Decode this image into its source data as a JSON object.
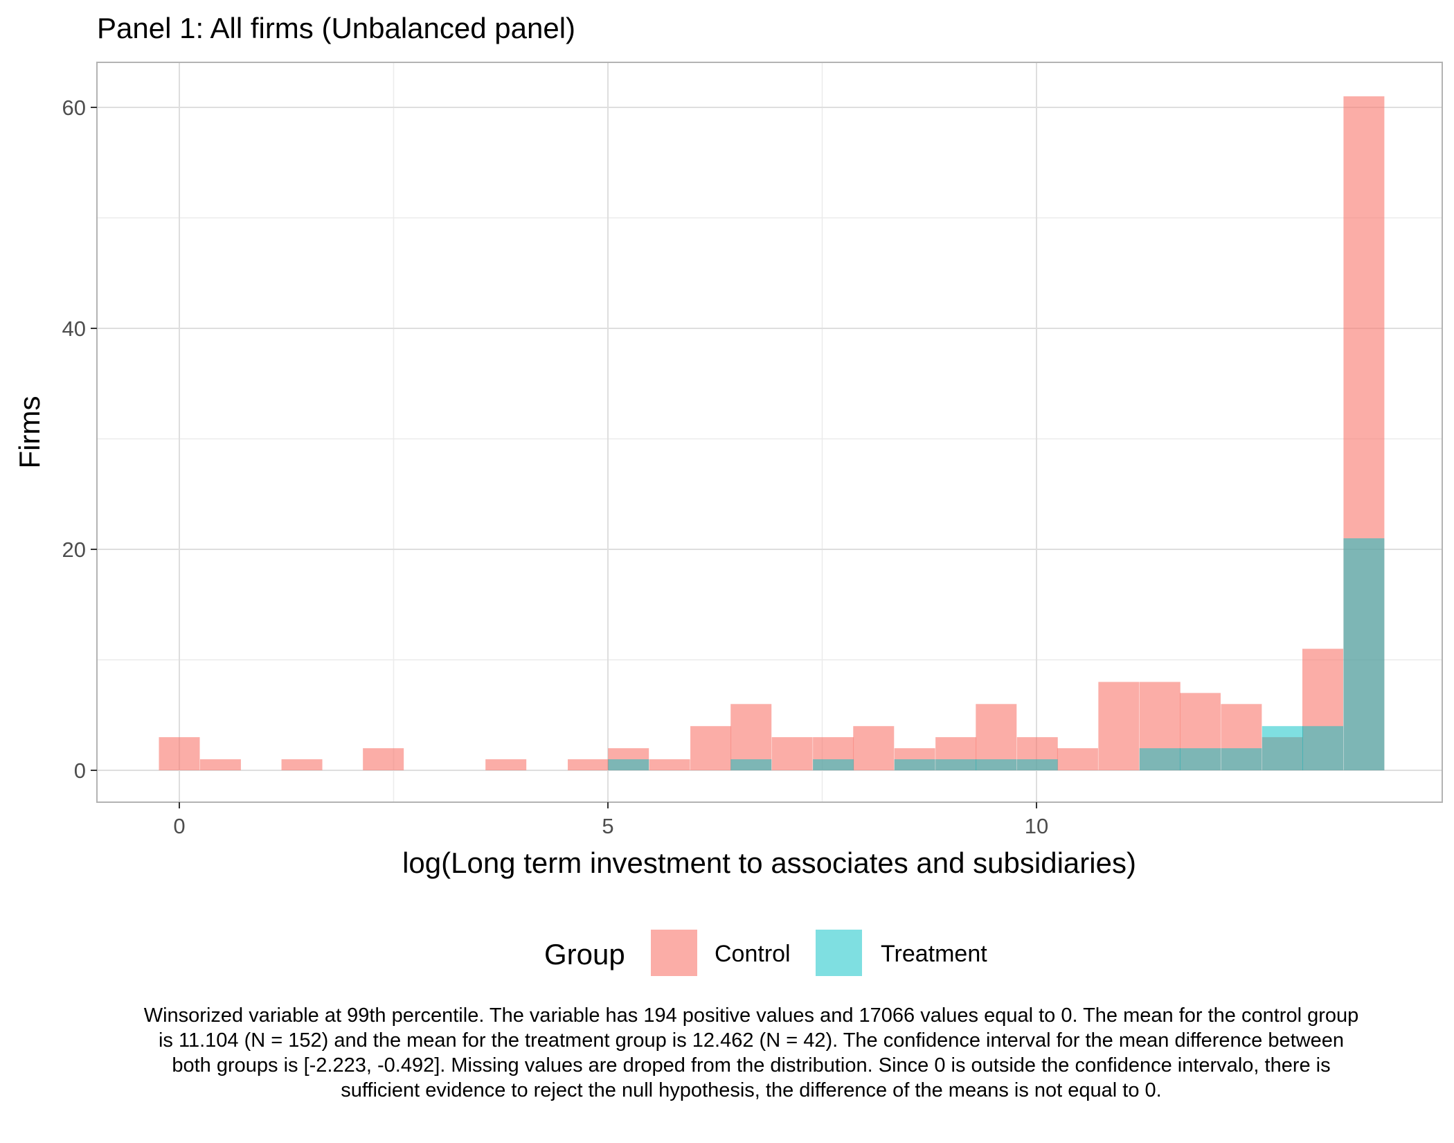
{
  "chart_data": {
    "type": "bar",
    "title": "Panel 1: All firms (Unbalanced panel)",
    "xlabel": "log(Long term investment to associates and subsidiaries)",
    "ylabel": "Firms",
    "xlim": [
      -0.9,
      12.4
    ],
    "ylim": [
      -2.9,
      64
    ],
    "x_ticks": [
      0,
      5,
      10
    ],
    "y_ticks": [
      0,
      20,
      40,
      60
    ],
    "x_minor_ticks": [
      2.5,
      7.5
    ],
    "y_minor_ticks": [
      10,
      30,
      50
    ],
    "grid": true,
    "bin_width": 0.4765,
    "legend": {
      "title": "Group",
      "position": "bottom"
    },
    "series": [
      {
        "name": "Control",
        "color": "#F8766D",
        "opacity": 0.6,
        "bins": [
          {
            "x": 0.0,
            "count": 3
          },
          {
            "x": 0.48,
            "count": 1
          },
          {
            "x": 1.43,
            "count": 1
          },
          {
            "x": 2.38,
            "count": 2
          },
          {
            "x": 3.81,
            "count": 1
          },
          {
            "x": 4.77,
            "count": 1
          },
          {
            "x": 5.24,
            "count": 2
          },
          {
            "x": 5.72,
            "count": 1
          },
          {
            "x": 6.2,
            "count": 4
          },
          {
            "x": 6.67,
            "count": 6
          },
          {
            "x": 7.15,
            "count": 3
          },
          {
            "x": 7.63,
            "count": 3
          },
          {
            "x": 8.1,
            "count": 4
          },
          {
            "x": 8.58,
            "count": 2
          },
          {
            "x": 9.06,
            "count": 3
          },
          {
            "x": 9.53,
            "count": 6
          },
          {
            "x": 10.01,
            "count": 3
          },
          {
            "x": 10.48,
            "count": 2
          },
          {
            "x": 10.96,
            "count": 8
          },
          {
            "x": 11.44,
            "count": 8
          },
          {
            "x": 11.91,
            "count": 7
          },
          {
            "x": 12.39,
            "count": 6
          },
          {
            "x": 12.87,
            "count": 3
          },
          {
            "x": 13.34,
            "count": 11
          },
          {
            "x": 13.82,
            "count": 61
          }
        ]
      },
      {
        "name": "Treatment",
        "color": "#00BFC4",
        "opacity": 0.5,
        "bins": [
          {
            "x": 5.24,
            "count": 1
          },
          {
            "x": 6.67,
            "count": 1
          },
          {
            "x": 7.63,
            "count": 1
          },
          {
            "x": 8.58,
            "count": 1
          },
          {
            "x": 9.06,
            "count": 1
          },
          {
            "x": 9.53,
            "count": 1
          },
          {
            "x": 10.01,
            "count": 1
          },
          {
            "x": 11.44,
            "count": 2
          },
          {
            "x": 11.91,
            "count": 2
          },
          {
            "x": 12.39,
            "count": 2
          },
          {
            "x": 12.87,
            "count": 4
          },
          {
            "x": 13.34,
            "count": 4
          },
          {
            "x": 13.82,
            "count": 21
          }
        ]
      }
    ]
  },
  "caption": "Winsorized variable at 99th percentile. The variable has 194 positive values and 17066 values equal to 0. The mean for the control group is 11.104 (N = 152) and the mean for the treatment group is 12.462 (N = 42). The confidence interval for the mean difference between both groups is [-2.223, -0.492]. Missing values are droped from the distribution. Since 0 is outside the confidence intervalo, there is sufficient evidence to reject the null hypothesis, the difference of the means is not equal to 0."
}
